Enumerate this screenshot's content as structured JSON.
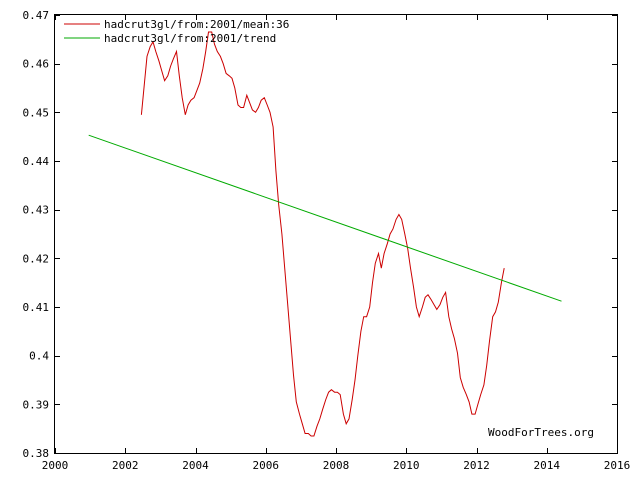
{
  "chart_data": {
    "type": "line",
    "title": "",
    "xlabel": "",
    "ylabel": "",
    "xlim": [
      2000,
      2016
    ],
    "ylim": [
      0.38,
      0.47
    ],
    "grid": false,
    "legend_position": "top-left",
    "x_ticks": [
      "2000",
      "2002",
      "2004",
      "2006",
      "2008",
      "2010",
      "2012",
      "2014",
      "2016"
    ],
    "y_ticks": [
      "0.38",
      "0.39",
      "0.4",
      "0.41",
      "0.42",
      "0.43",
      "0.44",
      "0.45",
      "0.46",
      "0.47"
    ],
    "credit": "WoodForTrees.org",
    "series": [
      {
        "name": "hadcrut3gl/from:2001/mean:36",
        "color": "#cc0000",
        "x": [
          2002.46,
          2002.54,
          2002.62,
          2002.71,
          2002.79,
          2002.87,
          2002.96,
          2003.04,
          2003.12,
          2003.21,
          2003.29,
          2003.37,
          2003.46,
          2003.54,
          2003.62,
          2003.71,
          2003.79,
          2003.87,
          2003.96,
          2004.04,
          2004.12,
          2004.21,
          2004.29,
          2004.37,
          2004.46,
          2004.54,
          2004.62,
          2004.71,
          2004.79,
          2004.87,
          2004.96,
          2005.04,
          2005.12,
          2005.21,
          2005.29,
          2005.37,
          2005.46,
          2005.54,
          2005.62,
          2005.71,
          2005.79,
          2005.87,
          2005.96,
          2006.04,
          2006.12,
          2006.21,
          2006.29,
          2006.37,
          2006.46,
          2006.54,
          2006.62,
          2006.71,
          2006.79,
          2006.87,
          2006.96,
          2007.04,
          2007.12,
          2007.21,
          2007.29,
          2007.37,
          2007.46,
          2007.54,
          2007.62,
          2007.71,
          2007.79,
          2007.87,
          2007.96,
          2008.04,
          2008.12,
          2008.21,
          2008.29,
          2008.37,
          2008.46,
          2008.54,
          2008.62,
          2008.71,
          2008.79,
          2008.87,
          2008.96,
          2009.04,
          2009.12,
          2009.21,
          2009.29,
          2009.37,
          2009.46,
          2009.54,
          2009.62,
          2009.71,
          2009.79,
          2009.87,
          2009.96,
          2010.04,
          2010.12,
          2010.21,
          2010.29,
          2010.37,
          2010.46,
          2010.54,
          2010.62,
          2010.71,
          2010.79,
          2010.87,
          2010.96,
          2011.04,
          2011.12,
          2011.21,
          2011.29,
          2011.37,
          2011.46,
          2011.54,
          2011.62,
          2011.71,
          2011.79,
          2011.87,
          2011.96,
          2012.04,
          2012.12,
          2012.21,
          2012.29,
          2012.37,
          2012.46,
          2012.54,
          2012.62,
          2012.71,
          2012.79
        ],
        "y": [
          0.4495,
          0.4555,
          0.4615,
          0.4635,
          0.4645,
          0.4625,
          0.4605,
          0.4585,
          0.4565,
          0.4575,
          0.4595,
          0.461,
          0.4625,
          0.4575,
          0.453,
          0.4495,
          0.4515,
          0.4525,
          0.453,
          0.4545,
          0.456,
          0.459,
          0.4625,
          0.4665,
          0.4665,
          0.464,
          0.4625,
          0.4615,
          0.46,
          0.458,
          0.4575,
          0.457,
          0.455,
          0.4515,
          0.451,
          0.451,
          0.4535,
          0.452,
          0.4505,
          0.45,
          0.451,
          0.4525,
          0.453,
          0.4515,
          0.45,
          0.447,
          0.438,
          0.431,
          0.425,
          0.418,
          0.411,
          0.403,
          0.396,
          0.3905,
          0.388,
          0.386,
          0.384,
          0.384,
          0.3835,
          0.3835,
          0.3855,
          0.387,
          0.389,
          0.391,
          0.3925,
          0.393,
          0.3925,
          0.3925,
          0.392,
          0.388,
          0.386,
          0.387,
          0.391,
          0.395,
          0.4,
          0.405,
          0.408,
          0.408,
          0.41,
          0.415,
          0.419,
          0.421,
          0.418,
          0.421,
          0.423,
          0.425,
          0.426,
          0.428,
          0.429,
          0.428,
          0.425,
          0.422,
          0.418,
          0.414,
          0.41,
          0.408,
          0.41,
          0.412,
          0.4125,
          0.4115,
          0.4105,
          0.4095,
          0.4105,
          0.412,
          0.413,
          0.408,
          0.4055,
          0.4035,
          0.4005,
          0.3955,
          0.3935,
          0.392,
          0.3905,
          0.388,
          0.388,
          0.39,
          0.392,
          0.394,
          0.398,
          0.403,
          0.408,
          0.409,
          0.411,
          0.415,
          0.418
        ]
      },
      {
        "name": "hadcrut3gl/from:2001/trend",
        "color": "#00aa00",
        "x": [
          2000.96,
          2014.42
        ],
        "y": [
          0.4453,
          0.4112
        ]
      }
    ]
  }
}
